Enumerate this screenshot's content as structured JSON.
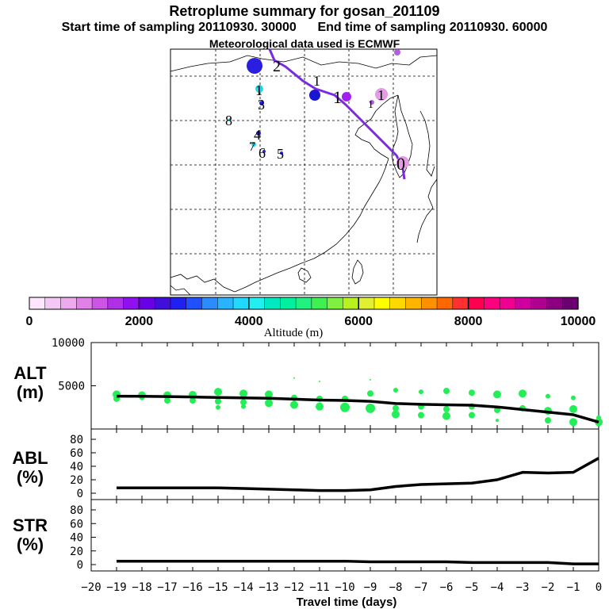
{
  "chart_data": {
    "header": {
      "title": "Retroplume summary for gosan_201109",
      "subtitle": "Start time of sampling 20110930. 30000      End time of sampling 20110930. 60000",
      "met_line": "Meteorological data used is ECMWF"
    },
    "map": {
      "type": "map",
      "trajectory_color": "#7a2be2",
      "clusters": [
        {
          "label": "2",
          "dot_color": "#2a1ee0",
          "dot_size": "large"
        },
        {
          "label": "1",
          "dot_color": "#22d8e6",
          "dot_size": "small"
        },
        {
          "label": "3",
          "dot_color": "#2a1ee0",
          "dot_size": "small"
        },
        {
          "label": "4",
          "dot_color": "#2a1ee0",
          "dot_size": "small"
        },
        {
          "label": "5",
          "dot_color": "#2a1ee0",
          "dot_size": "small"
        },
        {
          "label": "6",
          "dot_color": "#2a1ee0",
          "dot_size": "small"
        },
        {
          "label": "7",
          "dot_color": "#22d8e6",
          "dot_size": "small"
        },
        {
          "label": "8",
          "dot_color": "#22d8e6",
          "dot_size": "small"
        },
        {
          "label": "1",
          "dot_color": "#1a16d0",
          "dot_size": "medium"
        },
        {
          "label": "1",
          "dot_color": "#a020f0",
          "dot_size": "medium"
        },
        {
          "label": "1",
          "dot_color": "#e59ae6",
          "dot_size": "medium"
        },
        {
          "label": "1",
          "dot_color": "#b060e0",
          "dot_size": "small"
        },
        {
          "label": "0",
          "dot_color": "#e59ae6",
          "dot_size": "medium"
        }
      ]
    },
    "colorbar": {
      "ticks": [
        "0",
        "2000",
        "4000",
        "6000",
        "8000",
        "10000"
      ],
      "label": "Altitude (m)",
      "range": [
        0,
        10000
      ],
      "colors": [
        "#ffe6ff",
        "#f4c8f4",
        "#eeaaee",
        "#e080e8",
        "#cc55e6",
        "#b030e8",
        "#8f10f0",
        "#6a00e6",
        "#4010d8",
        "#2020f0",
        "#2050ff",
        "#2a8cff",
        "#2ab4ff",
        "#22d8ff",
        "#22f0f0",
        "#00e8c0",
        "#00f0a0",
        "#22f080",
        "#40f050",
        "#80f040",
        "#b8f020",
        "#e0f030",
        "#ffff00",
        "#ffd800",
        "#ffb400",
        "#ff9000",
        "#ff6800",
        "#ff3030",
        "#ff0050",
        "#ff0080",
        "#f00090",
        "#d000a0",
        "#b00090",
        "#8a0080",
        "#6a0070"
      ]
    },
    "panels": [
      {
        "name": "ALT",
        "ylabel_line1": "ALT",
        "ylabel_line2": "(m)",
        "ylim": [
          0,
          10000
        ],
        "yticks": [
          "10000",
          "5000"
        ],
        "ytick_values": [
          10000,
          5000
        ]
      },
      {
        "name": "ABL",
        "ylabel_line1": "ABL",
        "ylabel_line2": "(%)",
        "ylim": [
          0,
          100
        ],
        "yticks": [
          "80",
          "60",
          "40",
          "20",
          "0"
        ],
        "ytick_values": [
          80,
          60,
          40,
          20,
          0
        ]
      },
      {
        "name": "STR",
        "ylabel_line1": "STR",
        "ylabel_line2": "(%)",
        "ylim": [
          0,
          100
        ],
        "yticks": [
          "80",
          "60",
          "40",
          "20",
          "0"
        ],
        "ytick_values": [
          80,
          60,
          40,
          20,
          0
        ]
      }
    ],
    "xaxis": {
      "xlabel": "Travel time (days)",
      "xlim": [
        -20,
        0
      ],
      "ticks": [
        "−20",
        "−19",
        "−18",
        "−17",
        "−16",
        "−15",
        "−14",
        "−13",
        "−12",
        "−11",
        "−10",
        "−9",
        "−8",
        "−7",
        "−6",
        "−5",
        "−4",
        "−3",
        "−2",
        "−1",
        "0"
      ],
      "tick_values": [
        -20,
        -19,
        -18,
        -17,
        -16,
        -15,
        -14,
        -13,
        -12,
        -11,
        -10,
        -9,
        -8,
        -7,
        -6,
        -5,
        -4,
        -3,
        -2,
        -1,
        0
      ]
    },
    "series": [
      {
        "name": "ALT mean",
        "type": "line",
        "color": "#000000",
        "x": [
          -19,
          -18,
          -17,
          -16,
          -15,
          -14,
          -13,
          -12,
          -11,
          -10,
          -9,
          -8,
          -7,
          -6,
          -5,
          -4,
          -3,
          -2,
          -1,
          0
        ],
        "values": [
          3800,
          3780,
          3750,
          3700,
          3650,
          3600,
          3550,
          3450,
          3350,
          3300,
          3200,
          2950,
          2850,
          2800,
          2750,
          2550,
          2250,
          1950,
          1650,
          800
        ]
      },
      {
        "name": "ALT particles",
        "type": "scatter",
        "color": "#22ee55",
        "points": [
          {
            "x": -19,
            "y": 4000,
            "s": 5
          },
          {
            "x": -19,
            "y": 3500,
            "s": 4
          },
          {
            "x": -18,
            "y": 3900,
            "s": 5
          },
          {
            "x": -18,
            "y": 3600,
            "s": 3
          },
          {
            "x": -17,
            "y": 3900,
            "s": 5
          },
          {
            "x": -17,
            "y": 3300,
            "s": 4
          },
          {
            "x": -16,
            "y": 3950,
            "s": 5
          },
          {
            "x": -16,
            "y": 3300,
            "s": 4
          },
          {
            "x": -15,
            "y": 4300,
            "s": 5
          },
          {
            "x": -15,
            "y": 3200,
            "s": 4
          },
          {
            "x": -15,
            "y": 2500,
            "s": 3
          },
          {
            "x": -14,
            "y": 4100,
            "s": 5
          },
          {
            "x": -14,
            "y": 3100,
            "s": 4
          },
          {
            "x": -14,
            "y": 2600,
            "s": 3
          },
          {
            "x": -13,
            "y": 4000,
            "s": 5
          },
          {
            "x": -13,
            "y": 3000,
            "s": 5
          },
          {
            "x": -12,
            "y": 3600,
            "s": 4
          },
          {
            "x": -12,
            "y": 2800,
            "s": 5
          },
          {
            "x": -11,
            "y": 3500,
            "s": 4
          },
          {
            "x": -11,
            "y": 2600,
            "s": 5
          },
          {
            "x": -10,
            "y": 3500,
            "s": 4
          },
          {
            "x": -10,
            "y": 2500,
            "s": 6
          },
          {
            "x": -9,
            "y": 4100,
            "s": 4
          },
          {
            "x": -9,
            "y": 2400,
            "s": 6
          },
          {
            "x": -8,
            "y": 4500,
            "s": 3
          },
          {
            "x": -8,
            "y": 2400,
            "s": 4
          },
          {
            "x": -8,
            "y": 1700,
            "s": 5
          },
          {
            "x": -7,
            "y": 4300,
            "s": 3
          },
          {
            "x": -7,
            "y": 2600,
            "s": 4
          },
          {
            "x": -7,
            "y": 1600,
            "s": 4
          },
          {
            "x": -6,
            "y": 4400,
            "s": 4
          },
          {
            "x": -6,
            "y": 2300,
            "s": 4
          },
          {
            "x": -6,
            "y": 1500,
            "s": 5
          },
          {
            "x": -5,
            "y": 4200,
            "s": 4
          },
          {
            "x": -5,
            "y": 2600,
            "s": 4
          },
          {
            "x": -5,
            "y": 1600,
            "s": 4
          },
          {
            "x": -4,
            "y": 4000,
            "s": 5
          },
          {
            "x": -4,
            "y": 2200,
            "s": 4
          },
          {
            "x": -4,
            "y": 1000,
            "s": 2
          },
          {
            "x": -3,
            "y": 4100,
            "s": 5
          },
          {
            "x": -3,
            "y": 2400,
            "s": 4
          },
          {
            "x": -2,
            "y": 3800,
            "s": 3
          },
          {
            "x": -2,
            "y": 2100,
            "s": 5
          },
          {
            "x": -2,
            "y": 1000,
            "s": 4
          },
          {
            "x": -1,
            "y": 3600,
            "s": 3
          },
          {
            "x": -1,
            "y": 2300,
            "s": 5
          },
          {
            "x": -1,
            "y": 800,
            "s": 5
          },
          {
            "x": 0,
            "y": 800,
            "s": 5
          },
          {
            "x": 0,
            "y": 1300,
            "s": 3
          },
          {
            "x": 0,
            "y": 600,
            "s": 3
          },
          {
            "x": -12,
            "y": 5900,
            "s": 1
          },
          {
            "x": -11,
            "y": 5500,
            "s": 1
          },
          {
            "x": -9,
            "y": 5700,
            "s": 1
          }
        ]
      },
      {
        "name": "ABL",
        "type": "line",
        "color": "#000000",
        "x": [
          -19,
          -18,
          -17,
          -16,
          -15,
          -14,
          -13,
          -12,
          -11,
          -10,
          -9,
          -8,
          -7,
          -6,
          -5,
          -4,
          -3,
          -2,
          -1,
          0
        ],
        "values": [
          8,
          8,
          8,
          8,
          8,
          7,
          6,
          5,
          4,
          4,
          5,
          10,
          13,
          14,
          15,
          20,
          31,
          30,
          31,
          52
        ]
      },
      {
        "name": "STR",
        "type": "line",
        "color": "#000000",
        "x": [
          -19,
          -18,
          -17,
          -16,
          -15,
          -14,
          -13,
          -12,
          -11,
          -10,
          -9,
          -8,
          -7,
          -6,
          -5,
          -4,
          -3,
          -2,
          -1,
          0
        ],
        "values": [
          5,
          5,
          5,
          5,
          5,
          5,
          5,
          5,
          5,
          5,
          4,
          4,
          4,
          4,
          3,
          3,
          3,
          3,
          1,
          1
        ]
      }
    ]
  }
}
